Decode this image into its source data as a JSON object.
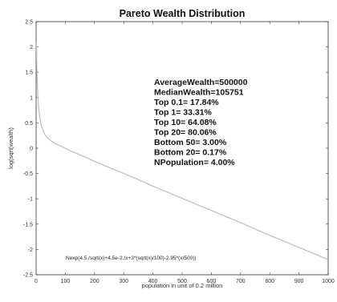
{
  "chart_data": {
    "type": "line",
    "title": "Pareto Wealth Distribution",
    "xlabel": "population in unit of 0.2 million",
    "ylabel": "log(sqrt(wealth)",
    "xlim": [
      0,
      1000
    ],
    "ylim": [
      -2.5,
      2.5
    ],
    "xticks": [
      "0",
      "100",
      "200",
      "300",
      "400",
      "500",
      "600",
      "700",
      "800",
      "900",
      "1000"
    ],
    "yticks": [
      "2.5",
      "2",
      "1.5",
      "1",
      "0.5",
      "0",
      "-0.5",
      "-1",
      "-1.5",
      "-2",
      "-2.5"
    ],
    "grid": false,
    "series": [
      {
        "color": "#bdbdbd",
        "x": [
          1,
          2,
          3,
          4,
          5,
          6,
          8,
          10,
          12,
          15,
          18,
          20,
          25,
          30,
          35,
          40,
          50,
          60,
          70,
          80,
          100,
          120,
          150,
          200,
          250,
          300,
          350,
          400,
          450,
          500,
          550,
          600,
          650,
          700,
          750,
          800,
          850,
          900,
          950,
          1000
        ],
        "y": [
          2.1,
          1.75,
          1.5,
          1.3,
          1.15,
          1.02,
          0.85,
          0.72,
          0.63,
          0.52,
          0.45,
          0.41,
          0.33,
          0.27,
          0.23,
          0.2,
          0.15,
          0.11,
          0.08,
          0.05,
          0.0,
          -0.06,
          -0.13,
          -0.26,
          -0.38,
          -0.5,
          -0.62,
          -0.75,
          -0.87,
          -0.99,
          -1.11,
          -1.23,
          -1.35,
          -1.47,
          -1.6,
          -1.72,
          -1.84,
          -1.96,
          -2.08,
          -2.2
        ]
      }
    ]
  },
  "annotations": {
    "stats": [
      "AverageWealth=500000",
      "MedianWealth=105751",
      "Top 0.1= 17.84%",
      "Top 1= 33.31%",
      "Top 10= 64.08%",
      "Top 20= 80.06%",
      "Bottom 50=  3.00%",
      "Bottom 20=  0.17%",
      "NPopulation=  4.00%"
    ],
    "formula": "Nexp(4.5./sqrt(x)+4.5e-2./x+3*(sqrt(x)/100)-2.95*(x/500))"
  }
}
